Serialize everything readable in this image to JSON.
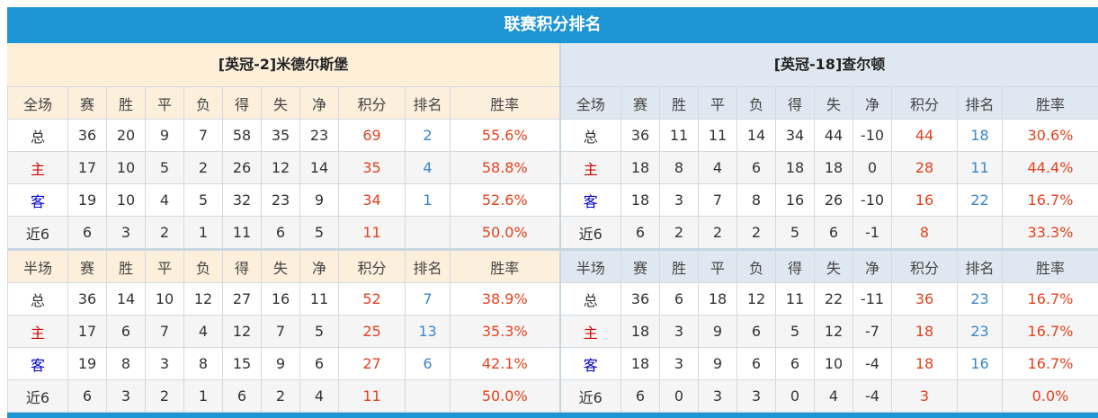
{
  "title": "联赛积分排名",
  "teams": {
    "left": "[英冠-2]米德尔斯堡",
    "right": "[英冠-18]查尔顿"
  },
  "colors": {
    "title_bar": "#1e95d4",
    "points": "#e2421d",
    "rank": "#3a86c8",
    "home_label": "#d40000",
    "away_label": "#0000c8"
  },
  "sections": [
    {
      "headers_left": [
        "全场",
        "赛",
        "胜",
        "平",
        "负",
        "得",
        "失",
        "净",
        "积分",
        "排名",
        "胜率"
      ],
      "headers_right": [
        "全场",
        "赛",
        "胜",
        "平",
        "负",
        "得",
        "失",
        "净",
        "积分",
        "排名",
        "胜率"
      ],
      "rows": [
        {
          "left": [
            "总",
            "36",
            "20",
            "9",
            "7",
            "58",
            "35",
            "23",
            "69",
            "2",
            "55.6%"
          ],
          "right": [
            "总",
            "36",
            "11",
            "11",
            "14",
            "34",
            "44",
            "-10",
            "44",
            "18",
            "30.6%"
          ]
        },
        {
          "left": [
            "主",
            "17",
            "10",
            "5",
            "2",
            "26",
            "12",
            "14",
            "35",
            "4",
            "58.8%"
          ],
          "right": [
            "主",
            "18",
            "8",
            "4",
            "6",
            "18",
            "18",
            "0",
            "28",
            "11",
            "44.4%"
          ]
        },
        {
          "left": [
            "客",
            "19",
            "10",
            "4",
            "5",
            "32",
            "23",
            "9",
            "34",
            "1",
            "52.6%"
          ],
          "right": [
            "客",
            "18",
            "3",
            "7",
            "8",
            "16",
            "26",
            "-10",
            "16",
            "22",
            "16.7%"
          ]
        },
        {
          "left": [
            "近6",
            "6",
            "3",
            "2",
            "1",
            "11",
            "6",
            "5",
            "11",
            "",
            "50.0%"
          ],
          "right": [
            "近6",
            "6",
            "2",
            "2",
            "2",
            "5",
            "6",
            "-1",
            "8",
            "",
            "33.3%"
          ]
        }
      ]
    },
    {
      "headers_left": [
        "半场",
        "赛",
        "胜",
        "平",
        "负",
        "得",
        "失",
        "净",
        "积分",
        "排名",
        "胜率"
      ],
      "headers_right": [
        "半场",
        "赛",
        "胜",
        "平",
        "负",
        "得",
        "失",
        "净",
        "积分",
        "排名",
        "胜率"
      ],
      "rows": [
        {
          "left": [
            "总",
            "36",
            "14",
            "10",
            "12",
            "27",
            "16",
            "11",
            "52",
            "7",
            "38.9%"
          ],
          "right": [
            "总",
            "36",
            "6",
            "18",
            "12",
            "11",
            "22",
            "-11",
            "36",
            "23",
            "16.7%"
          ]
        },
        {
          "left": [
            "主",
            "17",
            "6",
            "7",
            "4",
            "12",
            "7",
            "5",
            "25",
            "13",
            "35.3%"
          ],
          "right": [
            "主",
            "18",
            "3",
            "9",
            "6",
            "5",
            "12",
            "-7",
            "18",
            "23",
            "16.7%"
          ]
        },
        {
          "left": [
            "客",
            "19",
            "8",
            "3",
            "8",
            "15",
            "9",
            "6",
            "27",
            "6",
            "42.1%"
          ],
          "right": [
            "客",
            "18",
            "3",
            "9",
            "6",
            "6",
            "10",
            "-4",
            "18",
            "16",
            "16.7%"
          ]
        },
        {
          "left": [
            "近6",
            "6",
            "3",
            "2",
            "1",
            "6",
            "2",
            "4",
            "11",
            "",
            "50.0%"
          ],
          "right": [
            "近6",
            "6",
            "0",
            "3",
            "3",
            "0",
            "4",
            "-4",
            "3",
            "",
            "0.0%"
          ]
        }
      ]
    }
  ]
}
